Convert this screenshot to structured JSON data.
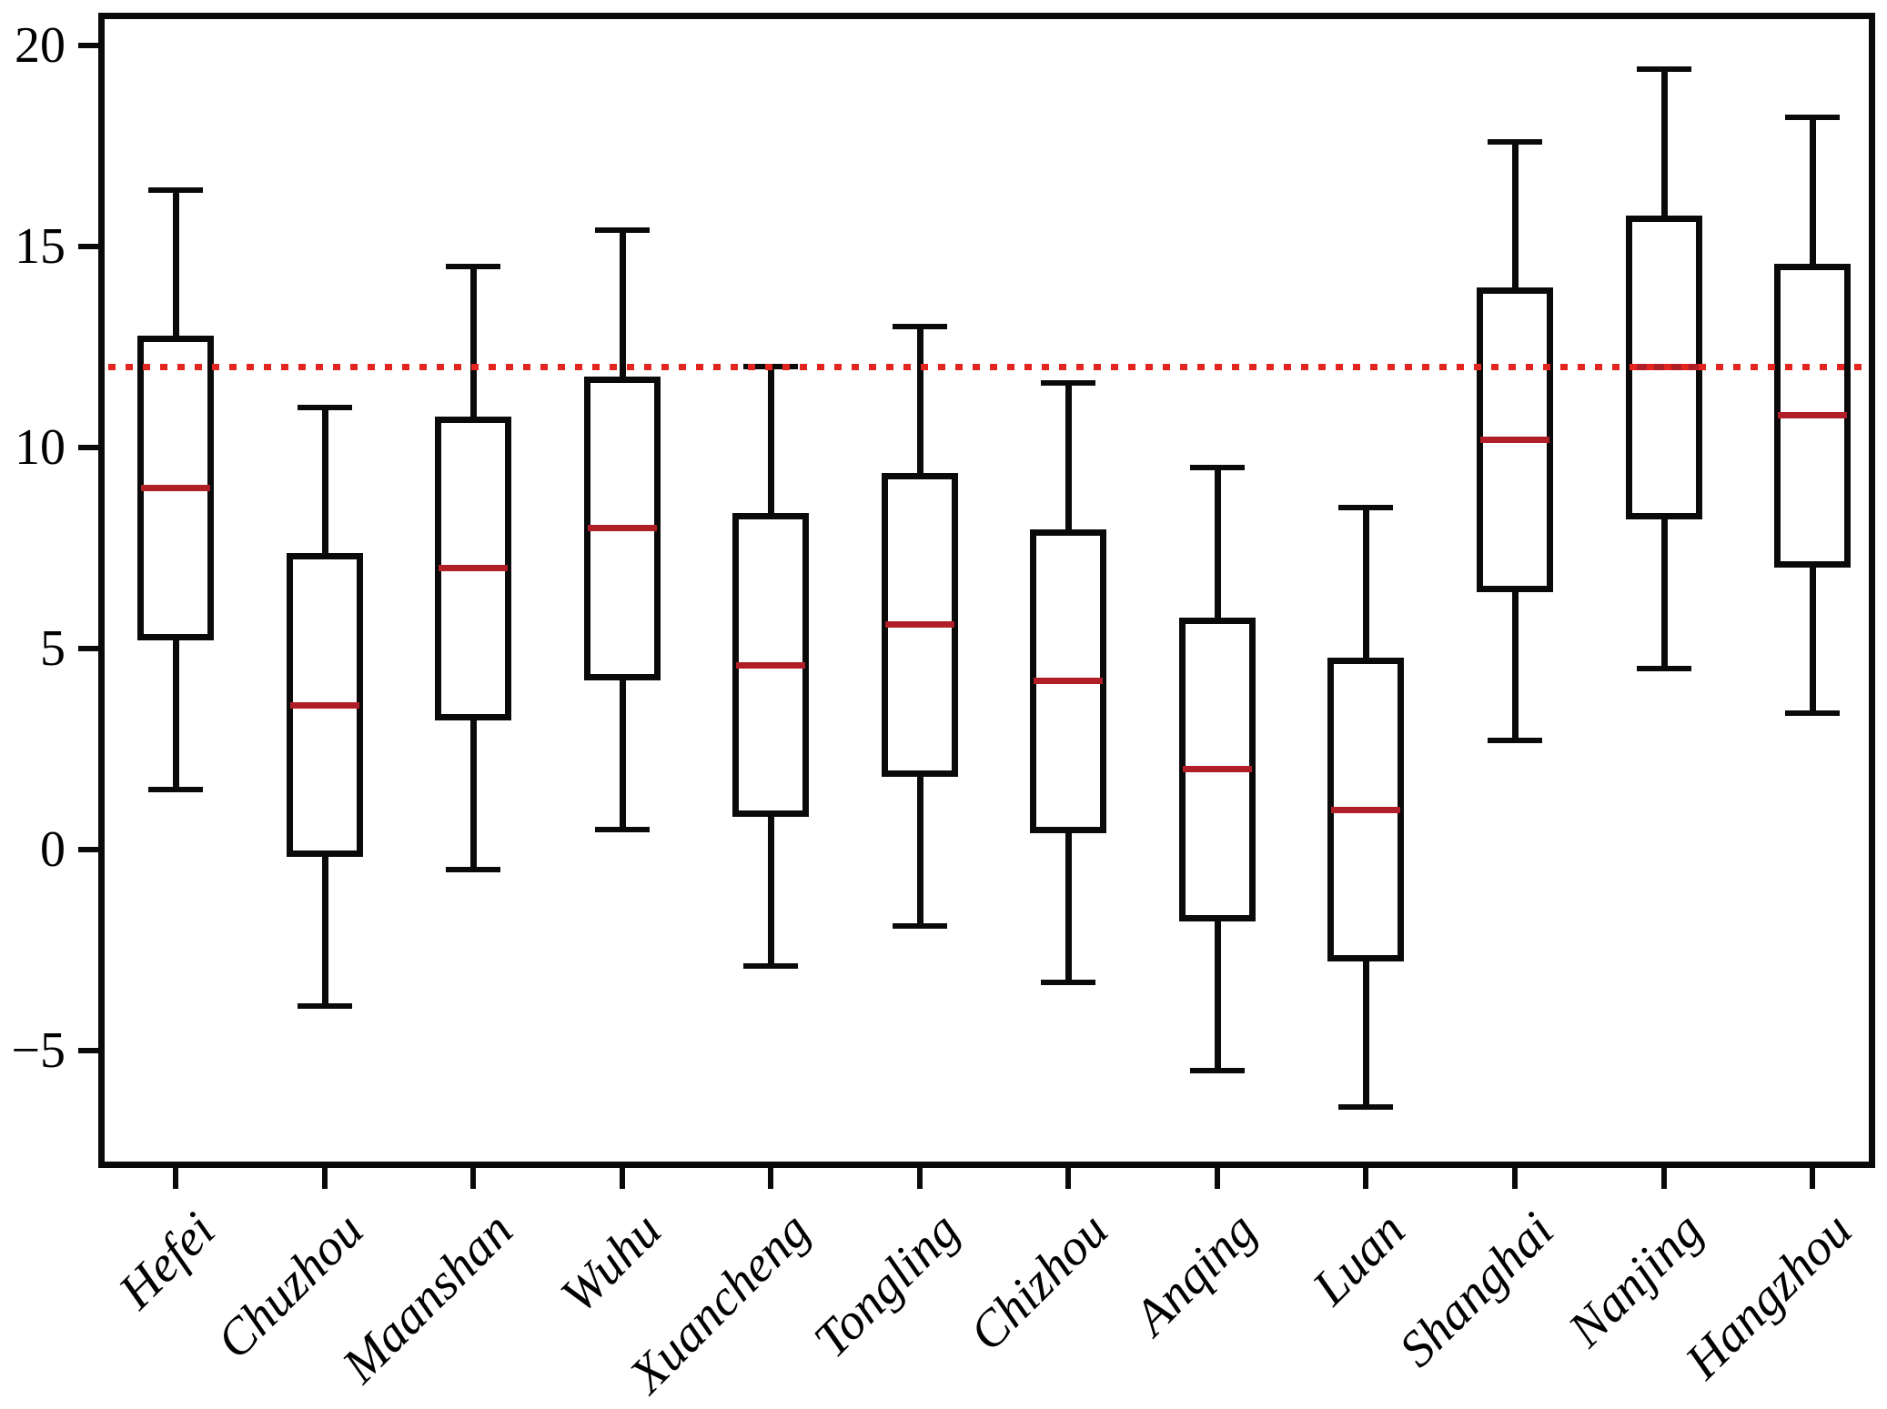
{
  "chart_data": {
    "type": "boxplot",
    "title": "",
    "xlabel": "",
    "ylabel": "",
    "grid": false,
    "legend": "none",
    "categories": [
      "Hefei",
      "Chuzhou",
      "Maanshan",
      "Wuhu",
      "Xuancheng",
      "Tongling",
      "Chizhou",
      "Anqing",
      "Luan",
      "Shanghai",
      "Nanjing",
      "Hangzhou"
    ],
    "boxes": [
      {
        "category": "Hefei",
        "whisker_low": 1.5,
        "q1": 5.3,
        "median": 9.0,
        "q3": 12.7,
        "whisker_high": 16.4
      },
      {
        "category": "Chuzhou",
        "whisker_low": -3.9,
        "q1": -0.1,
        "median": 3.6,
        "q3": 7.3,
        "whisker_high": 11.0
      },
      {
        "category": "Maanshan",
        "whisker_low": -0.5,
        "q1": 3.3,
        "median": 7.0,
        "q3": 10.7,
        "whisker_high": 14.5
      },
      {
        "category": "Wuhu",
        "whisker_low": 0.5,
        "q1": 4.3,
        "median": 8.0,
        "q3": 11.7,
        "whisker_high": 15.4
      },
      {
        "category": "Xuancheng",
        "whisker_low": -2.9,
        "q1": 0.9,
        "median": 4.6,
        "q3": 8.3,
        "whisker_high": 12.0
      },
      {
        "category": "Tongling",
        "whisker_low": -1.9,
        "q1": 1.9,
        "median": 5.6,
        "q3": 9.3,
        "whisker_high": 13.0
      },
      {
        "category": "Chizhou",
        "whisker_low": -3.3,
        "q1": 0.5,
        "median": 4.2,
        "q3": 7.9,
        "whisker_high": 11.6
      },
      {
        "category": "Anqing",
        "whisker_low": -5.5,
        "q1": -1.7,
        "median": 2.0,
        "q3": 5.7,
        "whisker_high": 9.5
      },
      {
        "category": "Luan",
        "whisker_low": -6.4,
        "q1": -2.7,
        "median": 1.0,
        "q3": 4.7,
        "whisker_high": 8.5
      },
      {
        "category": "Shanghai",
        "whisker_low": 2.7,
        "q1": 6.5,
        "median": 10.2,
        "q3": 13.9,
        "whisker_high": 17.6
      },
      {
        "category": "Nanjing",
        "whisker_low": 4.5,
        "q1": 8.3,
        "median": 12.0,
        "q3": 15.7,
        "whisker_high": 19.4
      },
      {
        "category": "Hangzhou",
        "whisker_low": 3.4,
        "q1": 7.1,
        "median": 10.8,
        "q3": 14.5,
        "whisker_high": 18.2
      }
    ],
    "reference_line": {
      "value": 12,
      "style": "dotted",
      "color": "#e2251f"
    },
    "y_axis": {
      "ticks": [
        20,
        15,
        10,
        5,
        0,
        -5
      ],
      "tick_labels": [
        "20",
        "15",
        "10",
        "5",
        "0",
        "−5"
      ],
      "range": [
        -7.8,
        20.7
      ]
    },
    "x_axis": {
      "tick_labels": [
        "Hefei",
        "Chuzhou",
        "Maanshan",
        "Wuhu",
        "Xuancheng",
        "Tongling",
        "Chizhou",
        "Anqing",
        "Luan",
        "Shanghai",
        "Nanjing",
        "Hangzhou"
      ]
    },
    "colors": {
      "box_edge": "#0a0a0a",
      "whisker": "#0a0a0a",
      "median": "#b01e28",
      "reference": "#e2251f",
      "background": "#ffffff"
    }
  }
}
